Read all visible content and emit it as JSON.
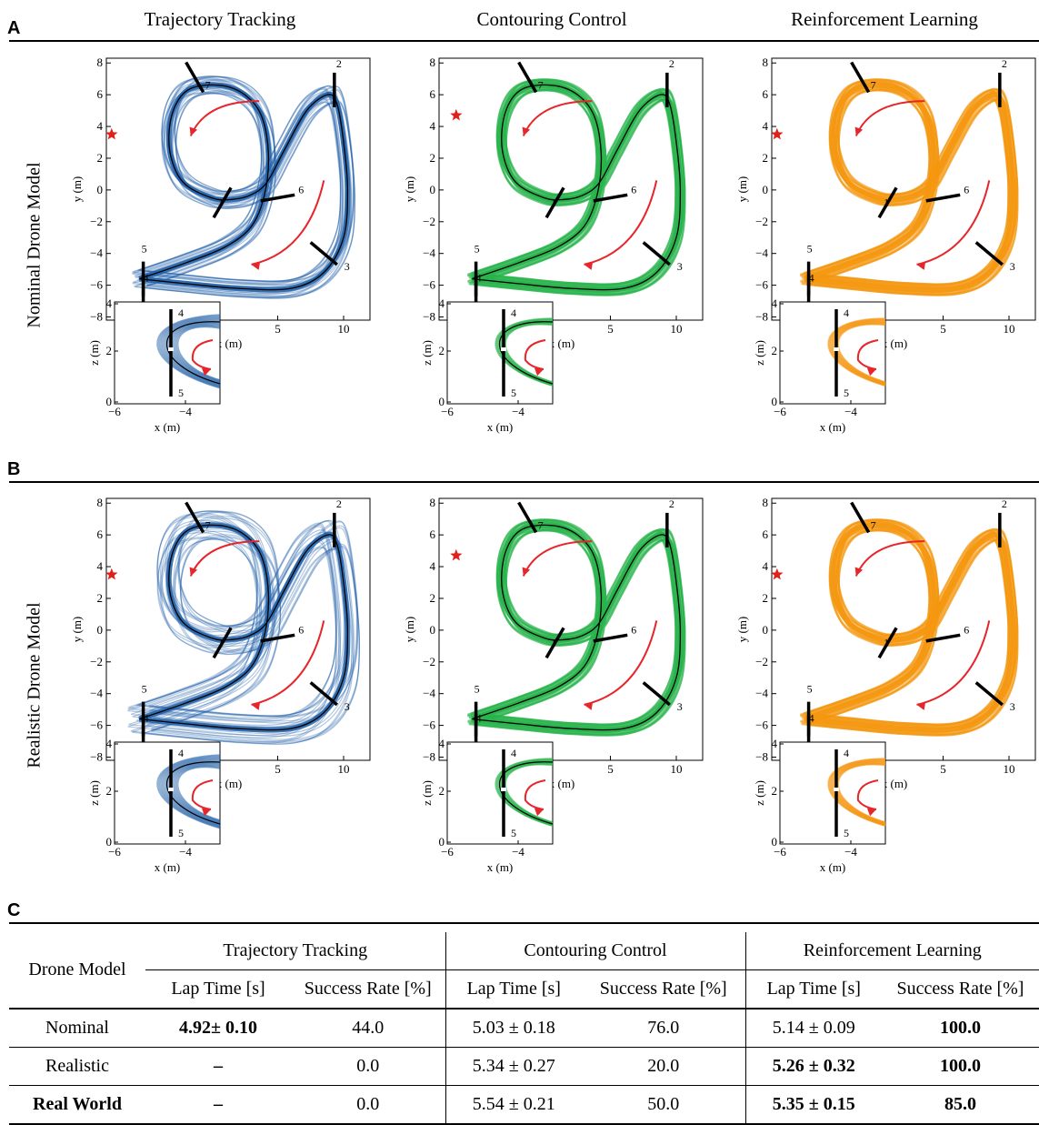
{
  "panels": {
    "a": "A",
    "b": "B",
    "c": "C"
  },
  "columns": [
    "Trajectory Tracking",
    "Contouring Control",
    "Reinforcement Learning"
  ],
  "rows": [
    "Nominal Drone Model",
    "Realistic Drone Model"
  ],
  "axes": {
    "main_x": "x (m)",
    "main_y": "y (m)",
    "inset_x": "x (m)",
    "inset_y": "z (m)",
    "main_y_ticks": [
      "8",
      "6",
      "4",
      "2",
      "0",
      "−2",
      "−4",
      "−6",
      "−8"
    ],
    "main_x_ticks": [
      "5",
      "10"
    ],
    "inset_y_ticks": [
      "4",
      "2",
      "0"
    ],
    "inset_x_ticks": [
      "−6",
      "−4"
    ],
    "gate_labels": [
      "1",
      "2",
      "3",
      "4",
      "5",
      "6",
      "7"
    ]
  },
  "colors": {
    "tracking": "#1f5fa8",
    "contouring": "#28b34b",
    "rl": "#f5960f",
    "arrow": "#e6262b",
    "start": "#e0201b"
  },
  "table": {
    "header": {
      "drone_model": "Drone Model",
      "groups": [
        "Trajectory Tracking",
        "Contouring Control",
        "Reinforcement Learning"
      ],
      "sub": [
        "Lap Time [s]",
        "Success Rate [%]",
        "Lap Time [s]",
        "Success Rate [%]",
        "Lap Time [s]",
        "Success Rate [%]"
      ]
    },
    "rows": [
      {
        "model": "Nominal",
        "cells": [
          "4.92± 0.10",
          "44.0",
          "5.03 ± 0.18",
          "76.0",
          "5.14 ± 0.09",
          "100.0"
        ],
        "bold": [
          true,
          false,
          false,
          false,
          false,
          true
        ],
        "model_bold": false
      },
      {
        "model": "Realistic",
        "cells": [
          "–",
          "0.0",
          "5.34 ± 0.27",
          "20.0",
          "5.26 ± 0.32",
          "100.0"
        ],
        "bold": [
          true,
          false,
          false,
          false,
          true,
          true
        ],
        "model_bold": false
      },
      {
        "model": "Real World",
        "cells": [
          "–",
          "0.0",
          "5.54 ± 0.21",
          "50.0",
          "5.35 ± 0.15",
          "85.0"
        ],
        "bold": [
          true,
          false,
          false,
          false,
          true,
          true
        ],
        "model_bold": true
      }
    ]
  }
}
